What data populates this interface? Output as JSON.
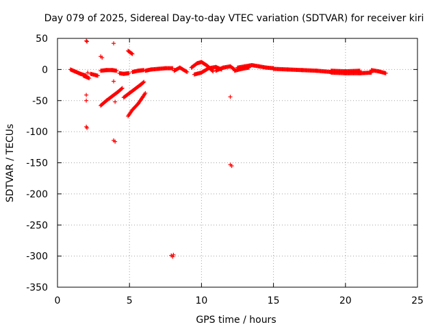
{
  "chart_data": {
    "type": "scatter",
    "title": "Day 079 of 2025, Sidereal Day-to-day VTEC variation (SDTVAR) for receiver kiri",
    "xlabel": "GPS time / hours",
    "ylabel": "SDTVAR / TECUs",
    "xlim": [
      0,
      25
    ],
    "ylim": [
      -350,
      50
    ],
    "xticks": [
      0,
      5,
      10,
      15,
      20,
      25
    ],
    "yticks": [
      50,
      0,
      -50,
      -100,
      -150,
      -200,
      -250,
      -300,
      -350
    ],
    "grid": true,
    "marker": "+",
    "color": "#ff0000",
    "segments": [
      {
        "x": [
          0.9,
          1.2,
          1.6,
          2.0
        ],
        "y": [
          0,
          -3,
          -7,
          -10
        ]
      },
      {
        "x": [
          1.8,
          2.2
        ],
        "y": [
          -10,
          -14
        ]
      },
      {
        "x": [
          2.3,
          2.8
        ],
        "y": [
          -7,
          -10
        ]
      },
      {
        "x": [
          3.0,
          3.4,
          3.8,
          4.1
        ],
        "y": [
          -2,
          -1,
          -1,
          -2
        ]
      },
      {
        "x": [
          4.3,
          4.6,
          4.95
        ],
        "y": [
          -6,
          -7,
          -6
        ]
      },
      {
        "x": [
          3.0,
          3.4,
          3.8,
          4.2,
          4.5
        ],
        "y": [
          -58,
          -50,
          -43,
          -36,
          -30
        ]
      },
      {
        "x": [
          4.6,
          5.0,
          5.4,
          5.8,
          6.0
        ],
        "y": [
          -45,
          -38,
          -31,
          -24,
          -20
        ]
      },
      {
        "x": [
          4.9,
          5.2,
          5.6,
          5.9,
          6.1
        ],
        "y": [
          -75,
          -65,
          -55,
          -45,
          -38
        ]
      },
      {
        "x": [
          4.9,
          5.2
        ],
        "y": [
          30,
          25
        ]
      },
      {
        "x": [
          5.2,
          5.6,
          6.0
        ],
        "y": [
          -4,
          -2,
          -1
        ]
      },
      {
        "x": [
          6.1,
          6.5,
          7.0,
          7.5,
          8.0
        ],
        "y": [
          -2,
          0,
          1,
          2,
          2
        ]
      },
      {
        "x": [
          8.1,
          8.5,
          9.0
        ],
        "y": [
          -2,
          3,
          -4
        ]
      },
      {
        "x": [
          9.3,
          9.7,
          10.0,
          10.4,
          10.8
        ],
        "y": [
          3,
          10,
          12,
          6,
          -3
        ]
      },
      {
        "x": [
          9.5,
          10.0,
          10.5,
          11.0,
          11.4
        ],
        "y": [
          -8,
          -5,
          2,
          4,
          0
        ]
      },
      {
        "x": [
          11.0,
          11.5,
          12.0,
          12.3
        ],
        "y": [
          -2,
          3,
          5,
          0
        ]
      },
      {
        "x": [
          12.5,
          13.0,
          13.5,
          14.0,
          14.5,
          15.0
        ],
        "y": [
          3,
          5,
          7,
          5,
          3,
          2
        ]
      },
      {
        "x": [
          12.3,
          12.8,
          13.3
        ],
        "y": [
          -2,
          1,
          3
        ]
      },
      {
        "x": [
          15.0,
          16.0,
          17.0,
          18.0,
          19.0
        ],
        "y": [
          1,
          0,
          -1,
          -2,
          -4
        ]
      },
      {
        "x": [
          19.0,
          20.0,
          21.0,
          21.8
        ],
        "y": [
          -5,
          -6,
          -6,
          -5
        ]
      },
      {
        "x": [
          19.0,
          20.0,
          21.0
        ],
        "y": [
          -2,
          -3,
          -2
        ]
      },
      {
        "x": [
          21.8,
          22.3,
          22.8
        ],
        "y": [
          -1,
          -3,
          -6
        ]
      }
    ],
    "points": [
      {
        "x": 2.0,
        "y": 46
      },
      {
        "x": 2.05,
        "y": 45
      },
      {
        "x": 3.0,
        "y": 21
      },
      {
        "x": 3.1,
        "y": 19
      },
      {
        "x": 3.9,
        "y": 42
      },
      {
        "x": 2.0,
        "y": -41
      },
      {
        "x": 2.0,
        "y": -50
      },
      {
        "x": 2.0,
        "y": -92
      },
      {
        "x": 2.05,
        "y": -94
      },
      {
        "x": 3.9,
        "y": -19
      },
      {
        "x": 4.0,
        "y": -52
      },
      {
        "x": 3.9,
        "y": -114
      },
      {
        "x": 4.0,
        "y": -116
      },
      {
        "x": 7.9,
        "y": -299
      },
      {
        "x": 8.0,
        "y": -301
      },
      {
        "x": 8.05,
        "y": -298
      },
      {
        "x": 12.0,
        "y": -44
      },
      {
        "x": 12.0,
        "y": -153
      },
      {
        "x": 12.1,
        "y": -155
      },
      {
        "x": 2.1,
        "y": -5
      }
    ]
  }
}
